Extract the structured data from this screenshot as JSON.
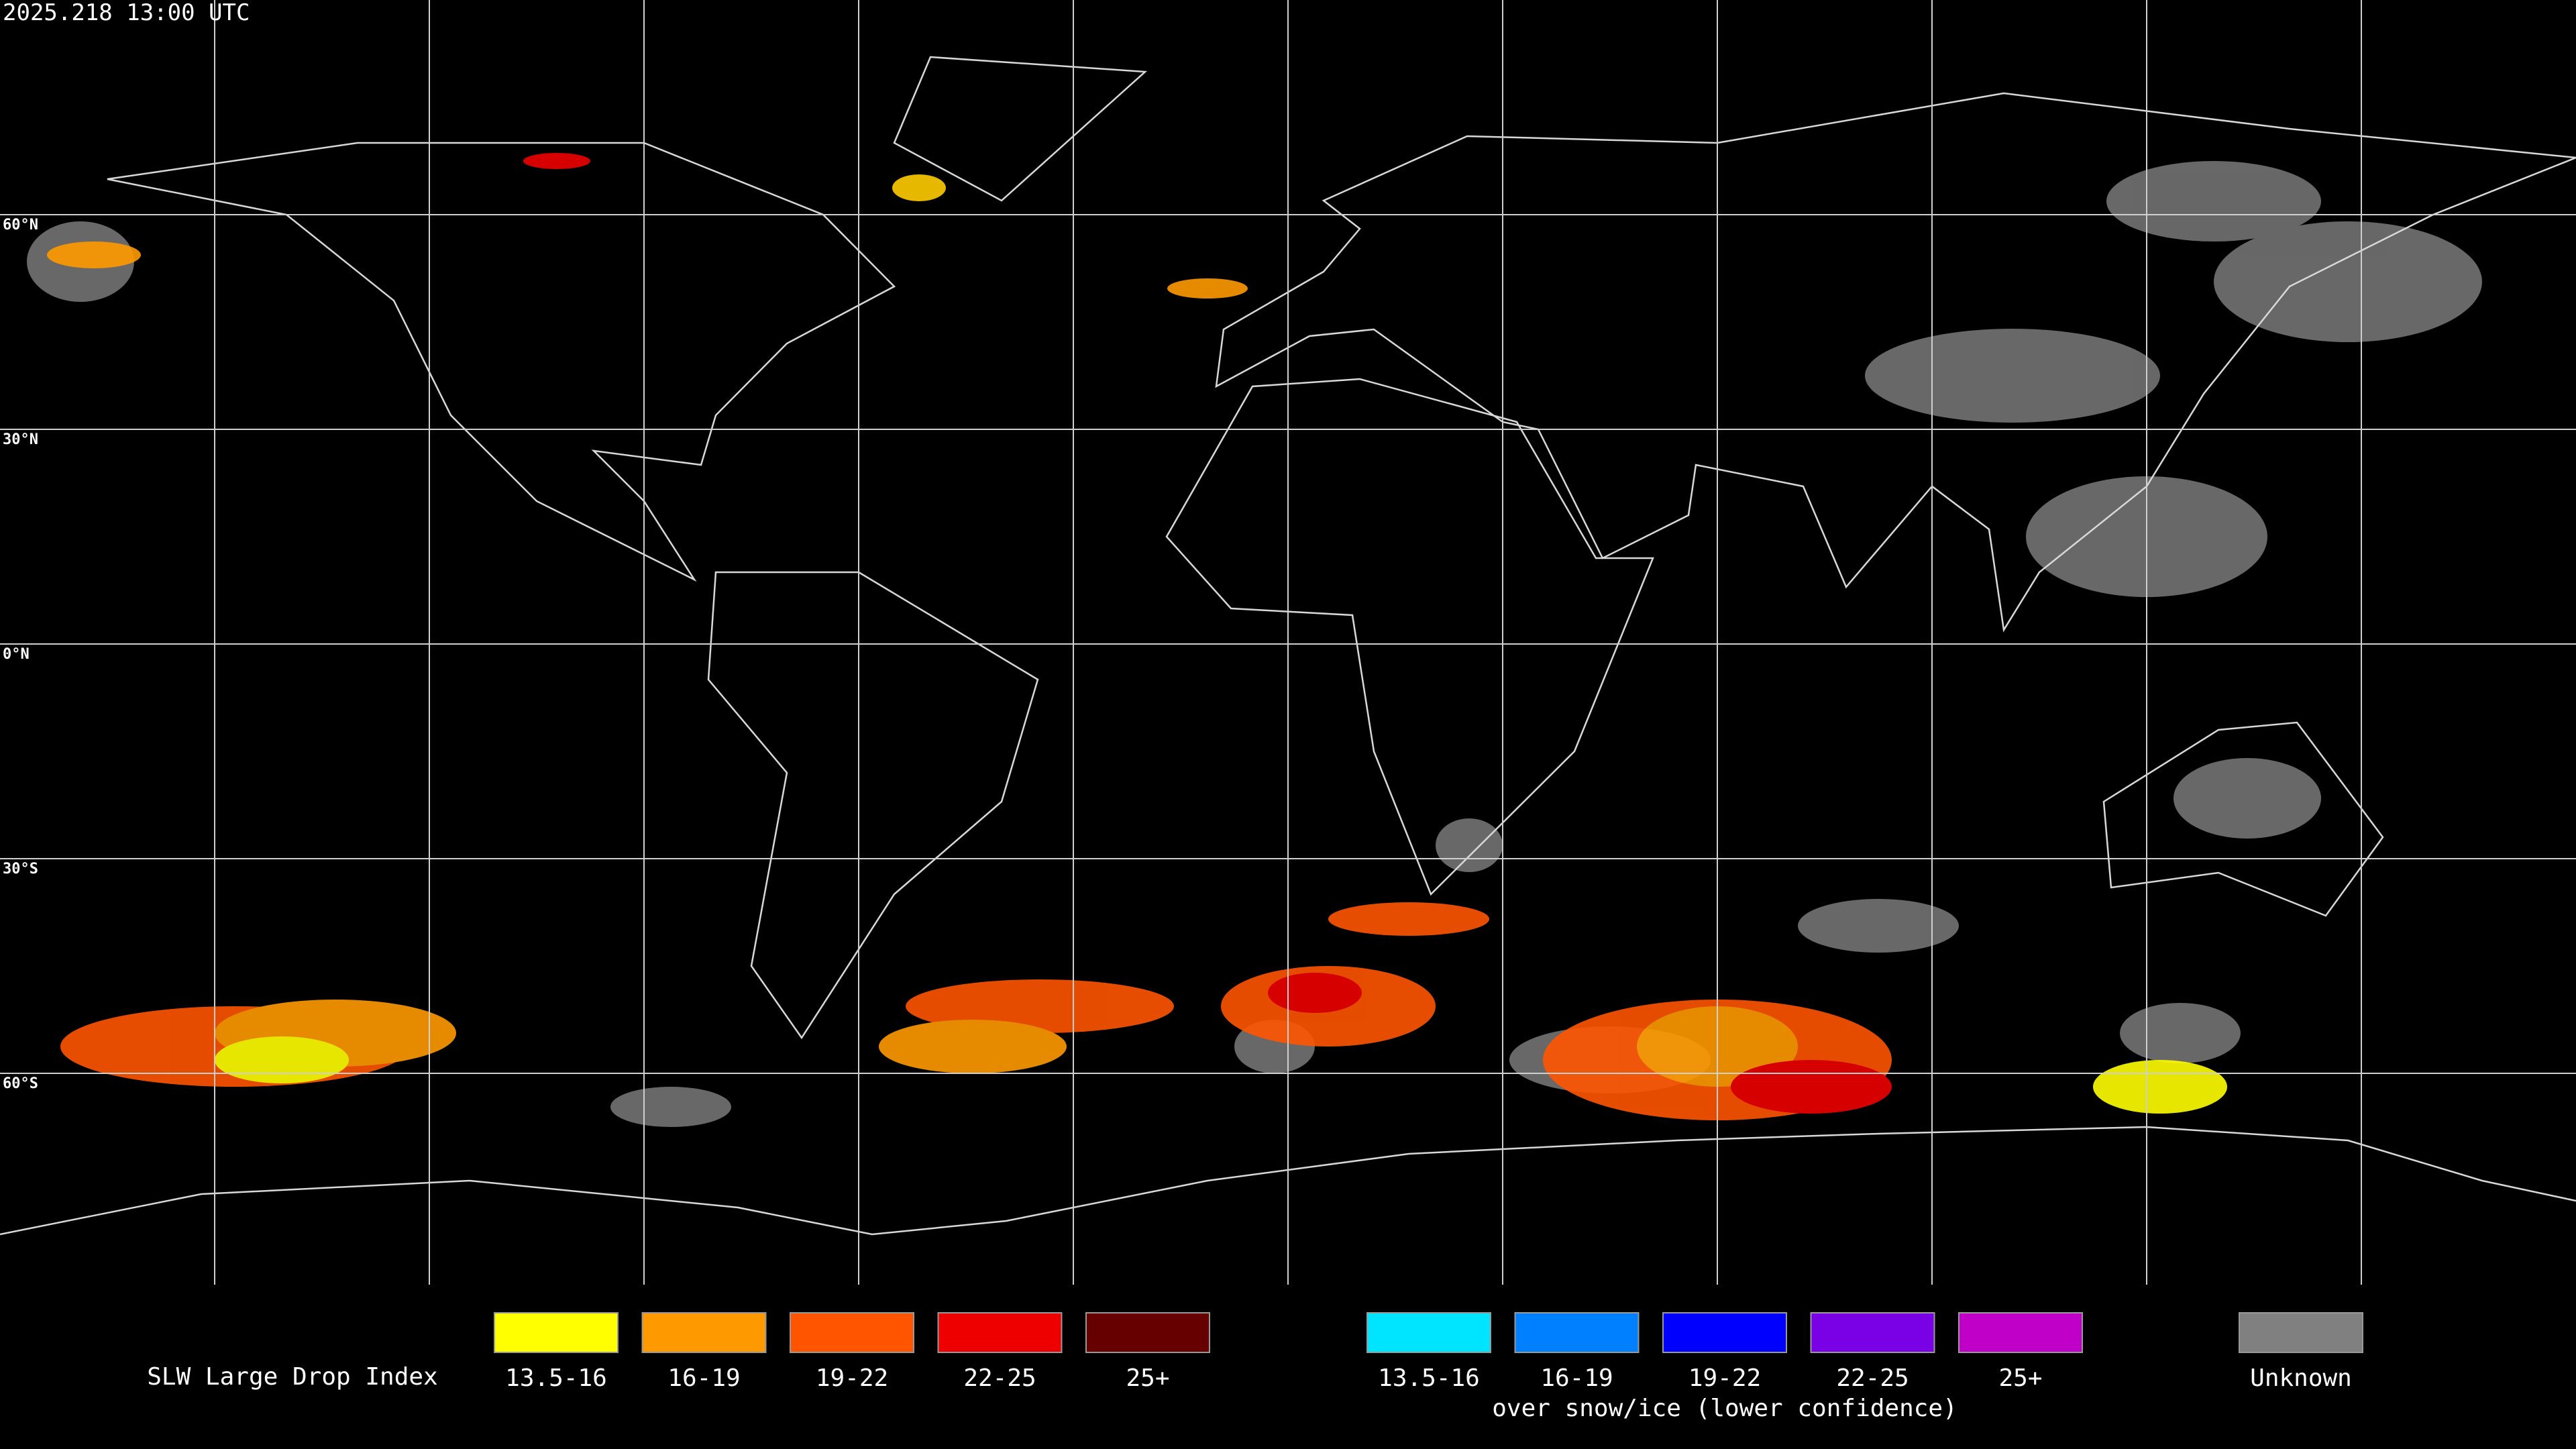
{
  "header": {
    "timestamp": "2025.218 13:00 UTC"
  },
  "map": {
    "lat_labels": [
      "60°N",
      "30°N",
      "0°N",
      "30°S",
      "60°S"
    ]
  },
  "legend": {
    "title": "SLW Large Drop Index",
    "groups": [
      {
        "items": [
          {
            "label": "13.5-16",
            "color": "#ffff00"
          },
          {
            "label": "16-19",
            "color": "#ff9900"
          },
          {
            "label": "19-22",
            "color": "#ff5500"
          },
          {
            "label": "22-25",
            "color": "#ee0000"
          },
          {
            "label": "25+",
            "color": "#660000"
          }
        ]
      },
      {
        "items": [
          {
            "label": "13.5-16",
            "color": "#00e5ff"
          },
          {
            "label": "16-19",
            "color": "#0080ff"
          },
          {
            "label": "19-22",
            "color": "#0000ff"
          },
          {
            "label": "22-25",
            "color": "#7a00e6"
          },
          {
            "label": "25+",
            "color": "#c000c8"
          }
        ],
        "caption": "over snow/ice (lower confidence)"
      },
      {
        "items": [
          {
            "label": "Unknown",
            "color": "#808080"
          }
        ]
      }
    ]
  }
}
